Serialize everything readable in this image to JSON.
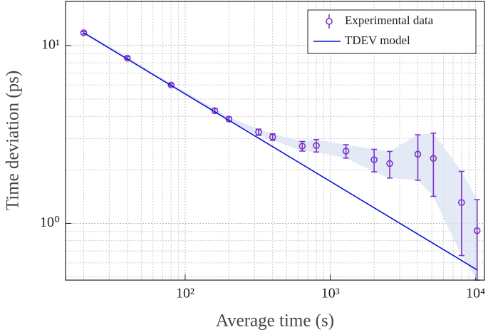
{
  "chart_data": {
    "type": "errorbar",
    "xlabel": "Average time (s)",
    "ylabel": "Time deviation (ps)",
    "xscale": "log",
    "yscale": "log",
    "grid": true,
    "xlim": [
      15,
      11500
    ],
    "ylim": [
      0.48,
      17.7
    ],
    "xticks": [
      {
        "value": 100,
        "label": "10²"
      },
      {
        "value": 1000,
        "label": "10³"
      },
      {
        "value": 10000,
        "label": "10⁴"
      }
    ],
    "yticks": [
      {
        "value": 1,
        "label": "10⁰"
      },
      {
        "value": 10,
        "label": "10¹"
      }
    ],
    "legend": "upper right",
    "series": [
      {
        "name": "Experimental data",
        "color": "#7a35c8",
        "band_color": "#dce3f3",
        "x": [
          20,
          40,
          80,
          160,
          200,
          320,
          400,
          640,
          800,
          1280,
          2000,
          2560,
          4000,
          5120,
          8000,
          10240
        ],
        "values": [
          11.8,
          8.5,
          6.0,
          4.3,
          3.86,
          3.26,
          3.06,
          2.72,
          2.74,
          2.55,
          2.28,
          2.17,
          2.45,
          2.32,
          1.31,
          0.91
        ],
        "errors": [
          0.2,
          0.15,
          0.1,
          0.12,
          0.1,
          0.13,
          0.13,
          0.17,
          0.22,
          0.22,
          0.33,
          0.37,
          0.7,
          0.9,
          0.65,
          0.45
        ]
      },
      {
        "name": "TDEV model",
        "color": "#0a14d8",
        "x": [
          20,
          10240
        ],
        "values": [
          11.8,
          0.548
        ]
      }
    ]
  }
}
